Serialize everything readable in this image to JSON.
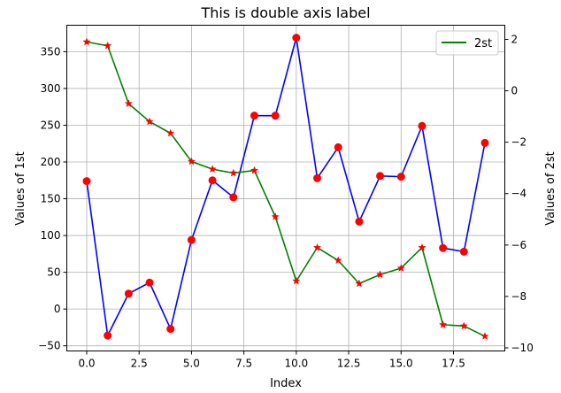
{
  "chart_data": {
    "type": "line",
    "title": "This is double axis label",
    "xlabel": "Index",
    "ylabel_left": "Values of 1st",
    "ylabel_right": "Values of 2st",
    "x": [
      0,
      1,
      2,
      3,
      4,
      5,
      6,
      7,
      8,
      9,
      10,
      11,
      12,
      13,
      14,
      15,
      16,
      17,
      18,
      19
    ],
    "x_ticks": [
      0,
      2.5,
      5,
      7.5,
      10,
      12.5,
      15,
      17.5
    ],
    "x_tick_labels": [
      "0.0",
      "2.5",
      "5.0",
      "7.5",
      "10.0",
      "12.5",
      "15.0",
      "17.5"
    ],
    "xlim": [
      -0.95,
      19.95
    ],
    "left_axis": {
      "ylim": [
        -57,
        386
      ],
      "ticks": [
        -50,
        0,
        50,
        100,
        150,
        200,
        250,
        300,
        350
      ],
      "tick_labels": [
        "−50",
        "0",
        "50",
        "100",
        "150",
        "200",
        "250",
        "300",
        "350"
      ]
    },
    "right_axis": {
      "ylim": [
        -10.12,
        2.55
      ],
      "ticks": [
        -10,
        -8,
        -6,
        -4,
        -2,
        0,
        2
      ],
      "tick_labels": [
        "−10",
        "−8",
        "−6",
        "−4",
        "−2",
        "0",
        "2"
      ]
    },
    "grid": true,
    "legend": {
      "placement": "top-right",
      "entries": [
        {
          "label": "2st",
          "color": "#008000"
        }
      ]
    },
    "series": [
      {
        "axis": "left",
        "color": "#0000ff",
        "marker": "circle",
        "marker_color": "#ff0000",
        "values": [
          174,
          -36,
          21,
          36,
          -27,
          94,
          175,
          152,
          263,
          263,
          369,
          178,
          220,
          119,
          181,
          180,
          249,
          83,
          78,
          226
        ]
      },
      {
        "name": "2st",
        "axis": "right",
        "color": "#008000",
        "marker": "star",
        "marker_color": "#ff0000",
        "values": [
          1.9,
          1.75,
          -0.5,
          -1.2,
          -1.65,
          -2.75,
          -3.05,
          -3.2,
          -3.1,
          -4.9,
          -7.4,
          -6.1,
          -6.6,
          -7.5,
          -7.15,
          -6.9,
          -6.1,
          -9.1,
          -9.15,
          -9.55
        ]
      }
    ]
  }
}
